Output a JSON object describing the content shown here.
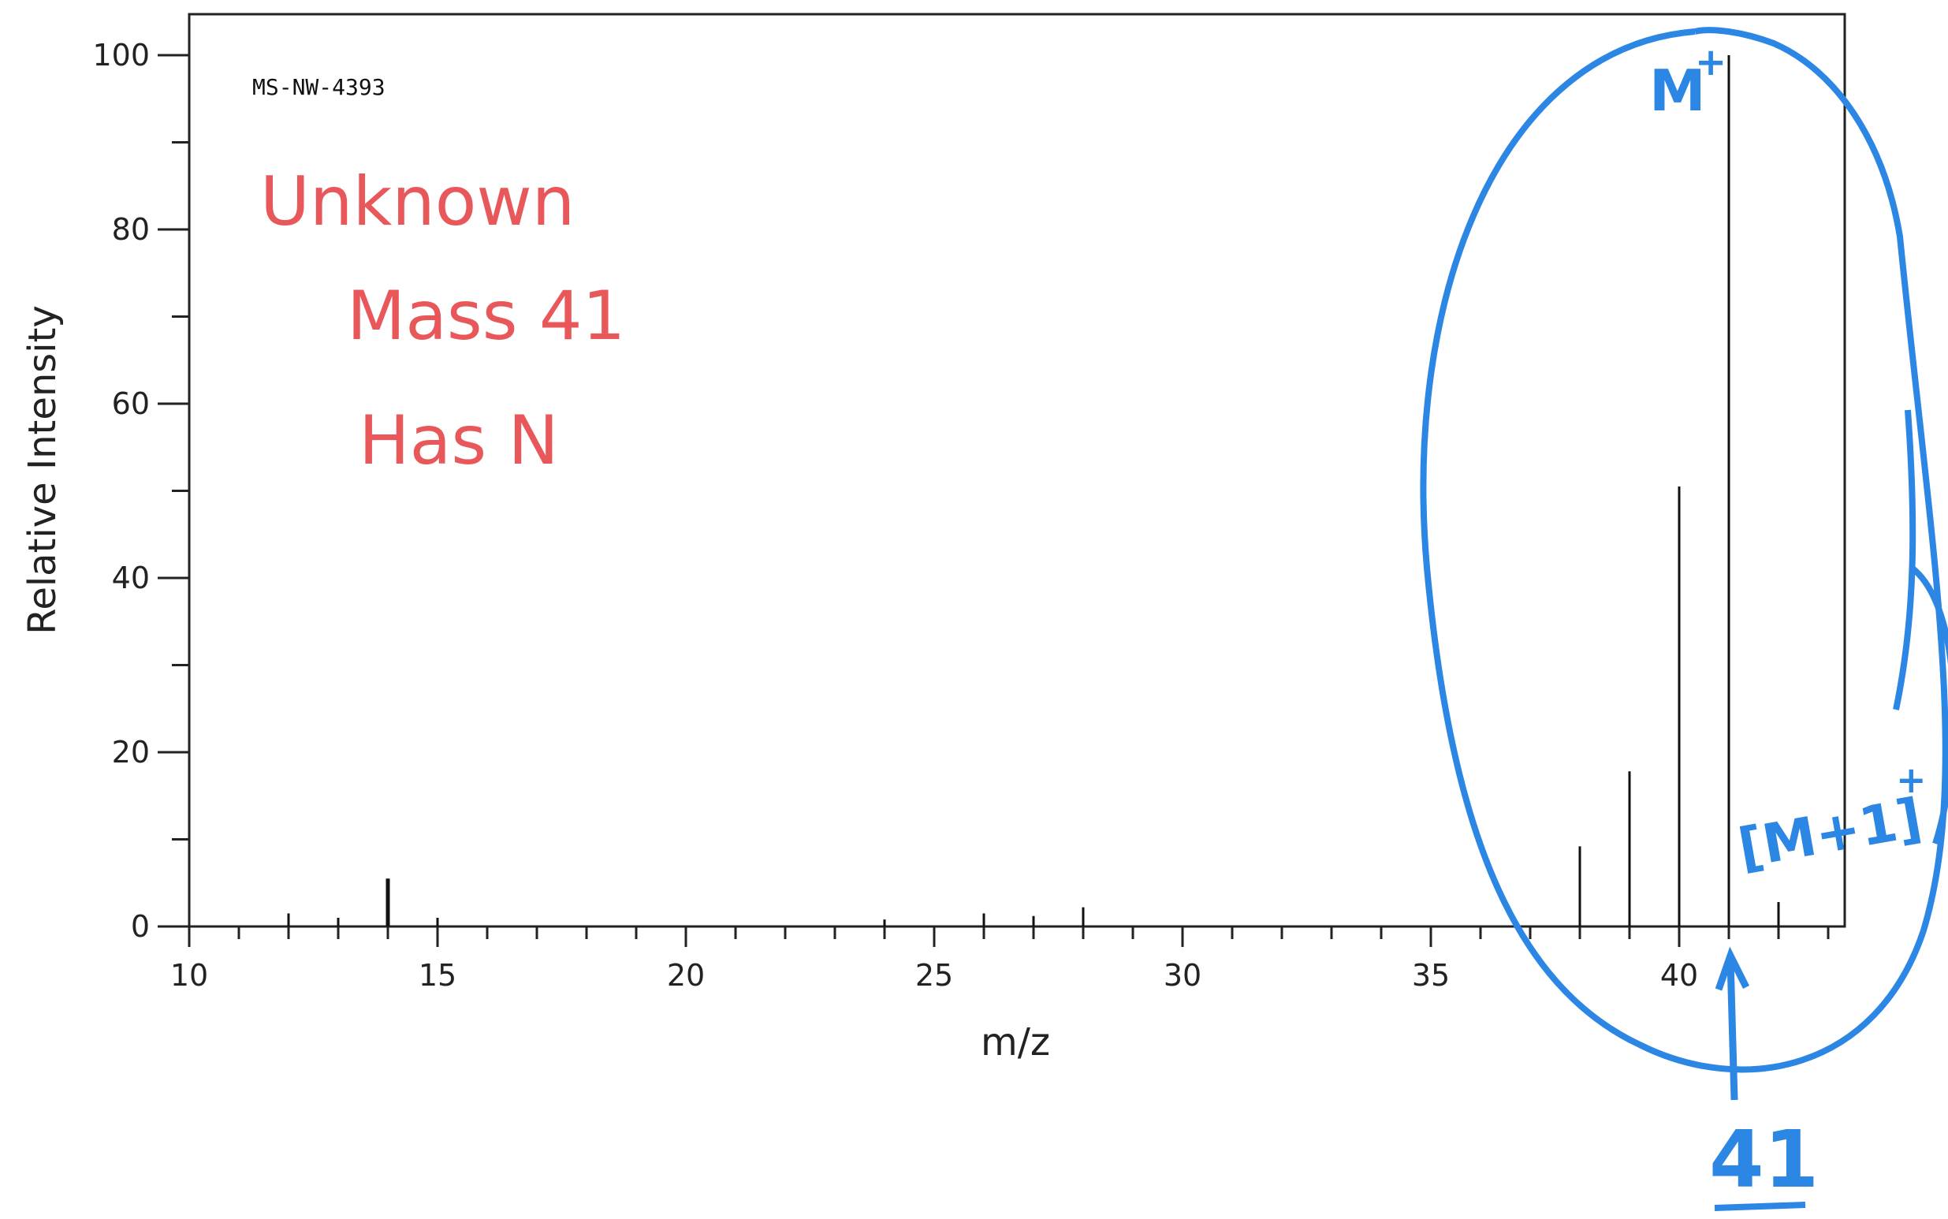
{
  "chart_data": {
    "type": "bar",
    "id_label": "MS-NW-4393",
    "xlabel": "m/z",
    "ylabel": "Relative Intensity",
    "xlim": [
      10,
      43.3
    ],
    "ylim": [
      0,
      105
    ],
    "x_ticks": [
      10,
      15,
      20,
      25,
      30,
      35,
      40
    ],
    "y_ticks": [
      0,
      20,
      40,
      60,
      80,
      100
    ],
    "peaks": [
      {
        "mz": 12,
        "intensity": 1.5
      },
      {
        "mz": 13,
        "intensity": 1.0
      },
      {
        "mz": 14,
        "intensity": 5.5
      },
      {
        "mz": 15,
        "intensity": 1.0
      },
      {
        "mz": 24,
        "intensity": 0.8
      },
      {
        "mz": 26,
        "intensity": 1.5
      },
      {
        "mz": 27,
        "intensity": 1.2
      },
      {
        "mz": 28,
        "intensity": 2.2
      },
      {
        "mz": 38,
        "intensity": 9.2
      },
      {
        "mz": 39,
        "intensity": 17.8
      },
      {
        "mz": 40,
        "intensity": 50.5
      },
      {
        "mz": 41,
        "intensity": 100
      },
      {
        "mz": 42,
        "intensity": 2.8
      }
    ],
    "grid": false
  },
  "annotations": {
    "red_lines": [
      "Unknown",
      "Mass 41",
      "Has N"
    ],
    "m_plus": "M",
    "m_plus_superscript": "+",
    "m_plus_one": "[M+1]",
    "m_plus_one_superscript": "+",
    "arrow_value": "41"
  }
}
